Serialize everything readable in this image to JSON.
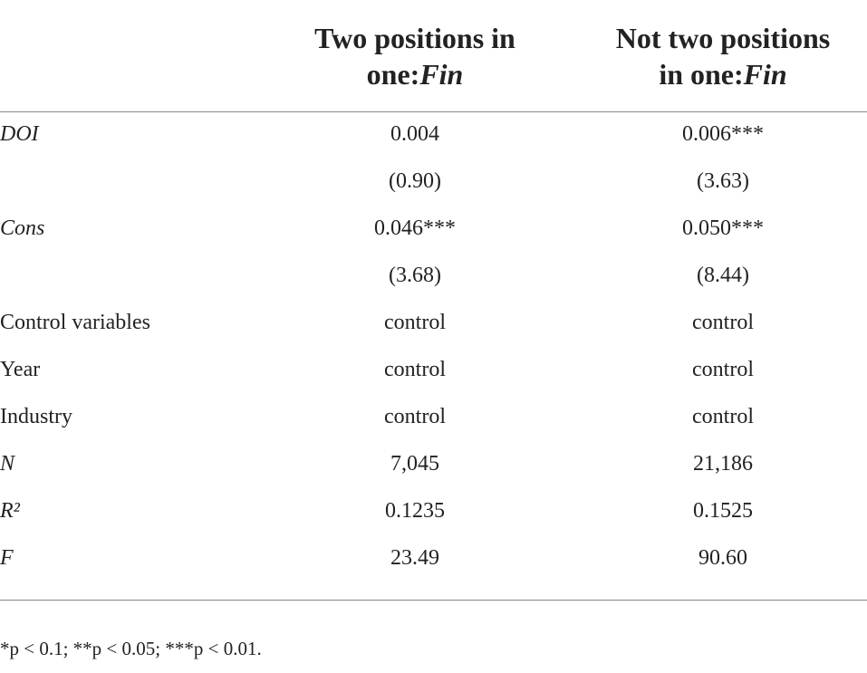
{
  "table": {
    "header": [
      {
        "main": "Two positions in one:",
        "em": "Fin",
        "break_after": "Two positions in"
      },
      {
        "main": "Not two positions in one:",
        "em": "Fin",
        "break_after": "Not two positions"
      }
    ],
    "rows": [
      {
        "label": "DOI",
        "italic": true,
        "cells": [
          "0.004",
          "0.006***"
        ]
      },
      {
        "label": null,
        "italic": false,
        "cells": [
          "(0.90)",
          "(3.63)"
        ]
      },
      {
        "label": "Cons",
        "italic": true,
        "cells": [
          "0.046***",
          "0.050***"
        ]
      },
      {
        "label": null,
        "italic": false,
        "cells": [
          "(3.68)",
          "(8.44)"
        ]
      },
      {
        "label": "Control variables",
        "italic": false,
        "cells": [
          "control",
          "control"
        ]
      },
      {
        "label": "Year",
        "italic": false,
        "cells": [
          "control",
          "control"
        ]
      },
      {
        "label": "Industry",
        "italic": false,
        "cells": [
          "control",
          "control"
        ]
      },
      {
        "label": "N",
        "italic": true,
        "cells": [
          "7,045",
          "21,186"
        ]
      },
      {
        "label": "R²",
        "italic": true,
        "cells": [
          "0.1235",
          "0.1525"
        ]
      },
      {
        "label": "F",
        "italic": true,
        "cells": [
          "23.49",
          "90.60"
        ]
      }
    ]
  },
  "footnote": "*p < 0.1; **p < 0.05; ***p < 0.01."
}
